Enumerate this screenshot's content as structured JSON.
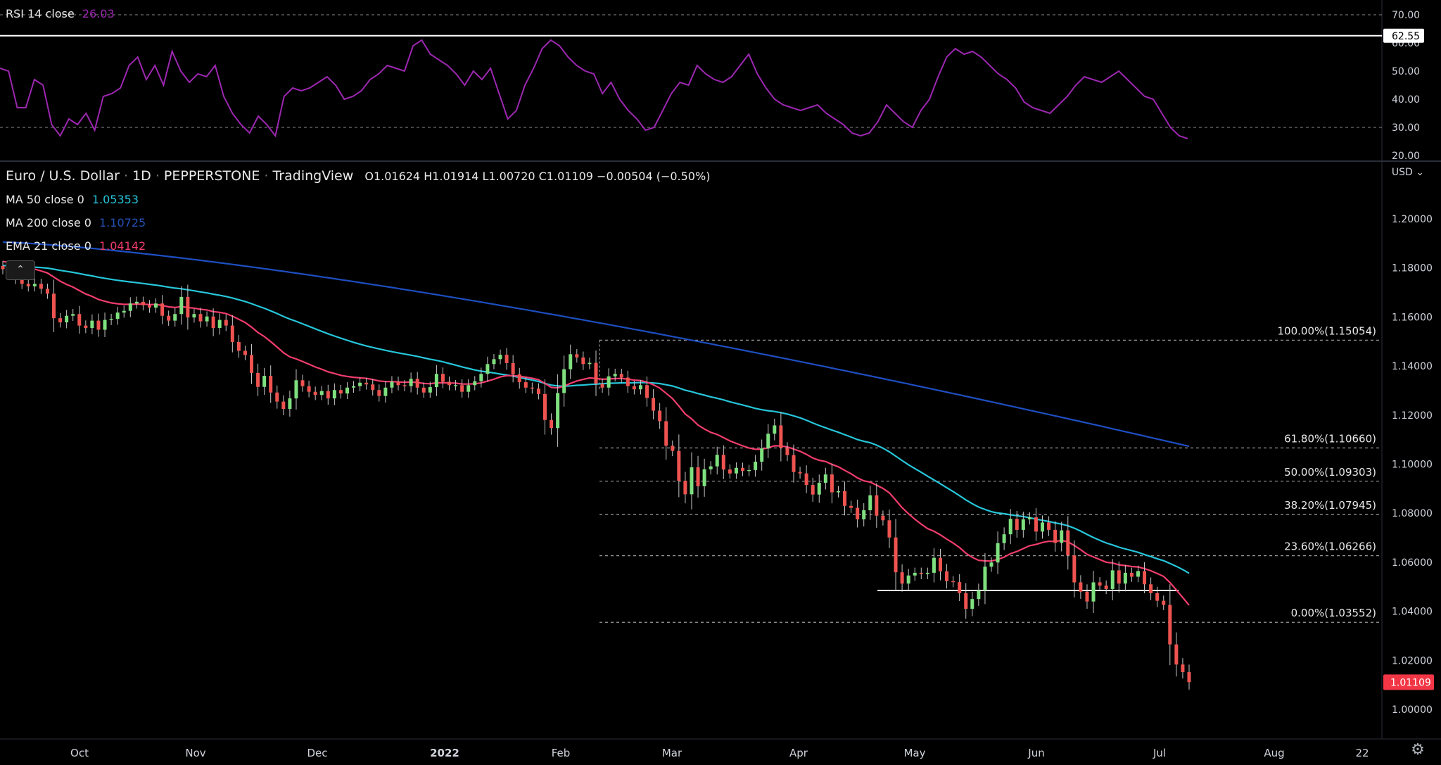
{
  "header": {
    "symbol": "Euro / U.S. Dollar",
    "interval": "1D",
    "broker": "PEPPERSTONE",
    "platform": "TradingView",
    "ohlc": "O1.01624 H1.01914 L1.00720 C1.01109 −0.00504 (−0.50%)"
  },
  "indicators": {
    "rsi": {
      "name": "RSI 14 close",
      "value": "26.03",
      "color": "#9c27b0"
    },
    "ma50": {
      "name": "MA 50 close 0",
      "value": "1.05353",
      "color": "#26c6da"
    },
    "ma200": {
      "name": "MA 200 close 0",
      "value": "1.10725",
      "color": "#1e4fc2"
    },
    "ema21": {
      "name": "EMA 21 close 0",
      "value": "1.04142",
      "color": "#f23d6d"
    }
  },
  "currency": "USD",
  "last_price": "1.01109",
  "rsi_marker": "62.55",
  "colors": {
    "up": "#26a69a",
    "up_fill": "#7ee07e",
    "down": "#ef5350",
    "last": "#f23645",
    "fib": "#9a9a9a"
  },
  "chart_data": [
    {
      "type": "line",
      "title": "RSI 14 close",
      "ylim": [
        18,
        75
      ],
      "y_ticks": [
        "70.00",
        "60.00",
        "50.00",
        "40.00",
        "30.00",
        "20.00"
      ],
      "bands": [
        30,
        70
      ],
      "series": [
        {
          "name": "RSI 14 close",
          "values": [
            51,
            50,
            37,
            37,
            47,
            45,
            31,
            27,
            33,
            31,
            35,
            29,
            41,
            42,
            44,
            52,
            55,
            47,
            52,
            45,
            57,
            50,
            46,
            49,
            48,
            52,
            41,
            35,
            31,
            28,
            34,
            31,
            27,
            41,
            44,
            43,
            44,
            46,
            48,
            45,
            40,
            41,
            43,
            47,
            49,
            52,
            51,
            50,
            59,
            61,
            56,
            54,
            52,
            49,
            45,
            50,
            47,
            51,
            42,
            33,
            36,
            45,
            51,
            58,
            61,
            59,
            55,
            52,
            50,
            49,
            42,
            46,
            40,
            36,
            33,
            29,
            30,
            36,
            42,
            46,
            45,
            52,
            49,
            47,
            46,
            48,
            52,
            56,
            49,
            44,
            40,
            38,
            37,
            36,
            37,
            38,
            35,
            33,
            31,
            28,
            27,
            28,
            32,
            38,
            35,
            32,
            30,
            36,
            40,
            48,
            55,
            58,
            56,
            57,
            55,
            52,
            49,
            47,
            44,
            39,
            37,
            36,
            35,
            38,
            41,
            45,
            48,
            47,
            46,
            48,
            50,
            47,
            44,
            41,
            40,
            35,
            30,
            27,
            26
          ],
          "color": "#9c27b0"
        }
      ]
    },
    {
      "type": "candlestick",
      "title": "Euro / U.S. Dollar · 1D · PEPPERSTONE",
      "ylim": [
        0.988,
        1.213
      ],
      "y_ticks": [
        "1.20000",
        "1.18000",
        "1.16000",
        "1.14000",
        "1.12000",
        "1.10000",
        "1.08000",
        "1.06000",
        "1.04000",
        "1.02000",
        "1.00000"
      ],
      "x_ticks": [
        "Oct",
        "Nov",
        "Dec",
        "2022",
        "Feb",
        "Mar",
        "Apr",
        "May",
        "Jun",
        "Jul",
        "Aug",
        "22"
      ],
      "fib_levels": [
        {
          "label": "100.00%(1.15054)",
          "value": 1.15054
        },
        {
          "label": "61.80%(1.10660)",
          "value": 1.1066
        },
        {
          "label": "50.00%(1.09303)",
          "value": 1.09303
        },
        {
          "label": "38.20%(1.07945)",
          "value": 1.07945
        },
        {
          "label": "23.60%(1.06266)",
          "value": 1.06266
        },
        {
          "label": "0.00%(1.03552)",
          "value": 1.03552
        }
      ],
      "support_level": 1.0485,
      "close": [
        1.1795,
        1.1775,
        1.1755,
        1.1735,
        1.1725,
        1.1735,
        1.1715,
        1.1695,
        1.1595,
        1.1578,
        1.1605,
        1.1612,
        1.1565,
        1.1555,
        1.1585,
        1.1548,
        1.1588,
        1.1592,
        1.1618,
        1.1625,
        1.1655,
        1.1662,
        1.1648,
        1.1638,
        1.1655,
        1.1605,
        1.1585,
        1.1612,
        1.1682,
        1.1598,
        1.1612,
        1.1582,
        1.1602,
        1.1555,
        1.1588,
        1.1565,
        1.1498,
        1.1462,
        1.1445,
        1.1372,
        1.1315,
        1.136,
        1.1292,
        1.1255,
        1.1225,
        1.1268,
        1.1342,
        1.1318,
        1.1295,
        1.1282,
        1.1298,
        1.1268,
        1.1302,
        1.1288,
        1.1312,
        1.1318,
        1.1332,
        1.1325,
        1.1302,
        1.1278,
        1.1312,
        1.1336,
        1.1322,
        1.1318,
        1.1348,
        1.1312,
        1.1292,
        1.1314,
        1.1368,
        1.1336,
        1.1322,
        1.1322,
        1.1295,
        1.1322,
        1.1338,
        1.1368,
        1.1408,
        1.1428,
        1.1446,
        1.1412,
        1.1366,
        1.1334,
        1.1312,
        1.1308,
        1.1286,
        1.118,
        1.1147,
        1.129,
        1.1387,
        1.1448,
        1.1435,
        1.1408,
        1.1413,
        1.1328,
        1.1312,
        1.1358,
        1.1368,
        1.1353,
        1.1318,
        1.1305,
        1.1322,
        1.127,
        1.1218,
        1.1175,
        1.1075,
        1.1054,
        1.0932,
        1.0877,
        1.0987,
        1.091,
        1.0979,
        1.0991,
        1.1038,
        1.0978,
        1.0962,
        1.0985,
        1.0972,
        1.0976,
        1.101,
        1.1064,
        1.1124,
        1.1158,
        1.1065,
        1.1037,
        1.0968,
        1.0962,
        1.0915,
        1.0876,
        1.0924,
        1.0958,
        1.0885,
        1.089,
        1.083,
        1.0822,
        1.0775,
        1.0812,
        1.0873,
        1.079,
        1.0771,
        1.0701,
        1.0559,
        1.0513,
        1.0546,
        1.0557,
        1.0552,
        1.0557,
        1.0618,
        1.0563,
        1.0523,
        1.0519,
        1.0474,
        1.041,
        1.045,
        1.0485,
        1.0582,
        1.0599,
        1.0678,
        1.0714,
        1.0777,
        1.0732,
        1.0775,
        1.0783,
        1.0725,
        1.0762,
        1.0732,
        1.0679,
        1.073,
        1.0628,
        1.0518,
        1.048,
        1.044,
        1.0518,
        1.0505,
        1.0491,
        1.0567,
        1.0513,
        1.0557,
        1.0541,
        1.0564,
        1.051,
        1.0474,
        1.0443,
        1.0426,
        1.0265,
        1.0183,
        1.0152,
        1.0111
      ]
    }
  ]
}
